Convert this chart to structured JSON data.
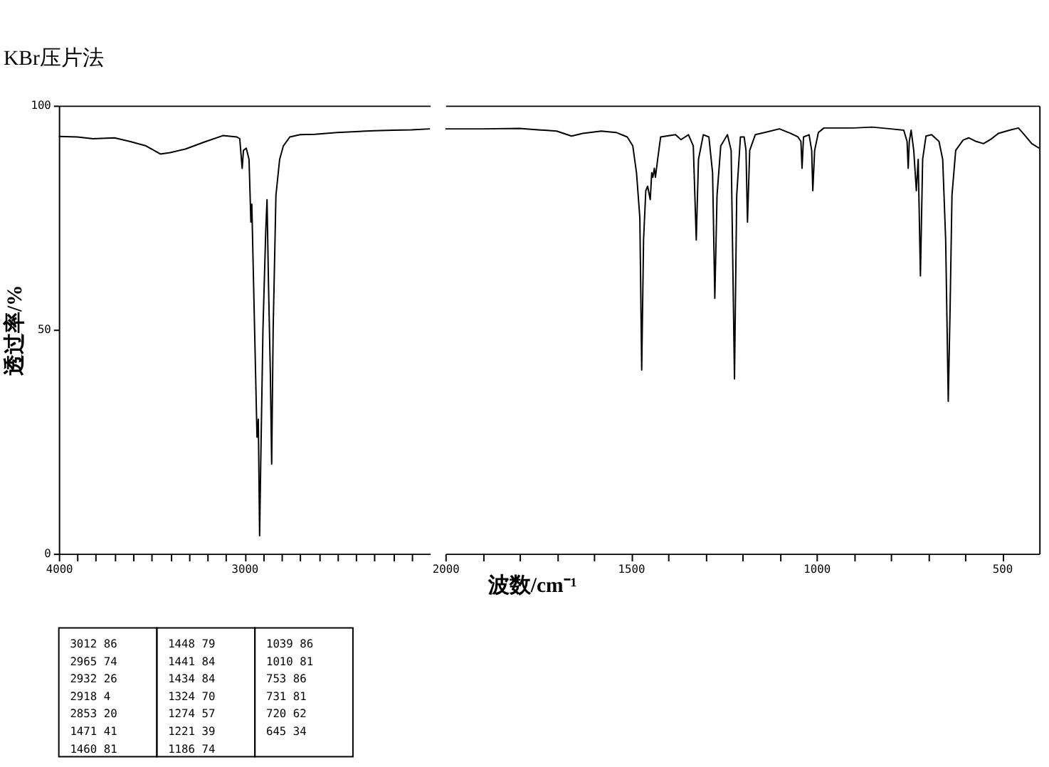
{
  "chart_data": [
    {
      "type": "line",
      "title": "KBr压片法",
      "ylabel": "透过率/%",
      "xlim": [
        4000,
        2000
      ],
      "ylim": [
        0,
        100
      ],
      "yticks": [
        0,
        50,
        100
      ],
      "xticks": [
        4000,
        {
          "value": 3900,
          "label": null
        },
        {
          "value": 3800,
          "label": null
        },
        {
          "value": 3700,
          "label": null
        },
        {
          "value": 3600,
          "label": null
        },
        {
          "value": 3500,
          "label": null
        },
        {
          "value": 3400,
          "label": null
        },
        {
          "value": 3300,
          "label": null
        },
        {
          "value": 3200,
          "label": null
        },
        {
          "value": 3100,
          "label": null
        },
        3000,
        {
          "value": 2900,
          "label": null
        },
        {
          "value": 2800,
          "label": null
        },
        {
          "value": 2700,
          "label": null
        },
        {
          "value": 2600,
          "label": null
        },
        {
          "value": 2500,
          "label": null
        },
        {
          "value": 2400,
          "label": null
        },
        {
          "value": 2300,
          "label": null
        },
        {
          "value": 2200,
          "label": null
        },
        {
          "value": 2100,
          "label": null
        }
      ],
      "grid": false,
      "series": [
        {
          "color": "#000000",
          "x": [
            4000,
            3900,
            3815,
            3700,
            3618,
            3530,
            3453,
            3400,
            3318,
            3220,
            3116,
            3040,
            3025,
            3012,
            3005,
            2990,
            2975,
            2965,
            2960,
            2945,
            2932,
            2925,
            2918,
            2912,
            2900,
            2885,
            2878,
            2870,
            2860,
            2853,
            2845,
            2830,
            2810,
            2790,
            2755,
            2700,
            2620,
            2500,
            2400,
            2300,
            2200,
            2100,
            2000
          ],
          "values": [
            93.1,
            93,
            92.6,
            92.8,
            92,
            91,
            89.2,
            89.5,
            90.3,
            91.8,
            93.3,
            93,
            92.6,
            86,
            90,
            90.5,
            88,
            74,
            78,
            50,
            26,
            30,
            4,
            20,
            50,
            72,
            79,
            60,
            40,
            20,
            50,
            80,
            88,
            91,
            93,
            93.5,
            93.6,
            94,
            94.2,
            94.4,
            94.5,
            94.6,
            94.8
          ]
        }
      ],
      "annotations": [
        "3012  86",
        "2965  74",
        "2932  26",
        "2918   4",
        "2853  20",
        "1471  41",
        "1460  81",
        "1448  79",
        "1441  84",
        "1434  84",
        "1324  70",
        "1274  57",
        "1221  39",
        "1186  74",
        "1039  86",
        "1010  81",
        " 753  86",
        " 731  81",
        " 720  62",
        " 645  34"
      ]
    },
    {
      "type": "line",
      "xlabel": "波数/cm⁻¹",
      "tick_labels": "x",
      "xlim": [
        2000,
        400
      ],
      "ylim": [
        0,
        100
      ],
      "xticks": [
        2000,
        {
          "value": 1900,
          "label": null
        },
        {
          "value": 1800,
          "label": null
        },
        {
          "value": 1700,
          "label": null
        },
        {
          "value": 1600,
          "label": null
        },
        1500,
        {
          "value": 1400,
          "label": null
        },
        {
          "value": 1300,
          "label": null
        },
        {
          "value": 1200,
          "label": null
        },
        {
          "value": 1100,
          "label": null
        },
        1000,
        {
          "value": 900,
          "label": null
        },
        {
          "value": 800,
          "label": null
        },
        {
          "value": 700,
          "label": null
        },
        {
          "value": 600,
          "label": null
        },
        500
      ],
      "grid": false,
      "series": [
        {
          "color": "#000000",
          "x": [
            2000,
            1900,
            1800,
            1750,
            1700,
            1660,
            1630,
            1580,
            1540,
            1510,
            1495,
            1485,
            1476,
            1471,
            1466,
            1460,
            1455,
            1448,
            1444,
            1441,
            1437,
            1434,
            1428,
            1420,
            1380,
            1365,
            1345,
            1332,
            1324,
            1318,
            1305,
            1290,
            1280,
            1274,
            1268,
            1258,
            1240,
            1230,
            1221,
            1215,
            1205,
            1195,
            1190,
            1186,
            1180,
            1165,
            1140,
            1100,
            1070,
            1050,
            1042,
            1039,
            1035,
            1020,
            1013,
            1010,
            1005,
            995,
            980,
            900,
            850,
            800,
            765,
            756,
            753,
            750,
            745,
            738,
            731,
            726,
            720,
            714,
            705,
            690,
            670,
            660,
            652,
            645,
            640,
            635,
            625,
            605,
            590,
            570,
            550,
            530,
            510,
            480,
            456,
            440,
            420,
            400
          ],
          "values": [
            94.8,
            94.8,
            94.9,
            94.6,
            94.3,
            93.2,
            93.8,
            94.3,
            94,
            93,
            91,
            85,
            75,
            41,
            70,
            81,
            82,
            79,
            85,
            84,
            86,
            84,
            88,
            93,
            93.5,
            92.4,
            93.5,
            91,
            70,
            88,
            93.5,
            93,
            85,
            57,
            80,
            91,
            93.5,
            90,
            39,
            80,
            93,
            93,
            90,
            74,
            90,
            93.5,
            94,
            94.8,
            93.8,
            93,
            92,
            86,
            93,
            93.5,
            90,
            81,
            90,
            94,
            95,
            95,
            95.2,
            94.8,
            94.5,
            92,
            86,
            92,
            94.5,
            90,
            81,
            88,
            62,
            88,
            93.2,
            93.5,
            92,
            88,
            70,
            34,
            55,
            80,
            90,
            92.3,
            92.8,
            92,
            91.5,
            92.5,
            93.8,
            94.5,
            95,
            93.5,
            91.5,
            90.5
          ]
        }
      ]
    }
  ]
}
